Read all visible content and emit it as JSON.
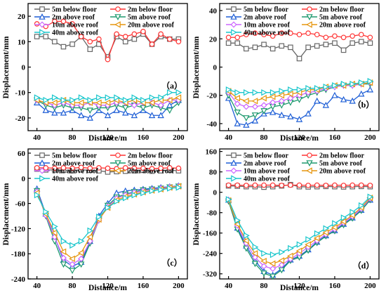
{
  "chart_data": [
    {
      "type": "line",
      "panel_label": "（a）",
      "xlabel": "Distance/m",
      "ylabel": "Displacement/mm",
      "xlim": [
        30,
        210
      ],
      "ylim": [
        -25,
        25
      ],
      "xticks": [
        40,
        80,
        120,
        160,
        200
      ],
      "yticks": [
        -20,
        -10,
        0,
        10,
        20
      ],
      "x": [
        40,
        50,
        60,
        70,
        80,
        90,
        100,
        110,
        120,
        130,
        140,
        150,
        160,
        170,
        180,
        190,
        200
      ],
      "series": [
        {
          "name": "5m below floor",
          "color": "#666666",
          "marker": "square",
          "values": [
            12,
            12,
            10,
            8,
            9,
            12,
            7,
            9,
            4,
            12,
            10,
            11,
            13,
            9,
            12,
            11,
            11
          ]
        },
        {
          "name": "2m below floor",
          "color": "#ff3333",
          "marker": "circle",
          "values": [
            17,
            16,
            18,
            18,
            17,
            12,
            10,
            11,
            3,
            13,
            12,
            13,
            14,
            9,
            13,
            11,
            10
          ]
        },
        {
          "name": "2m above roof",
          "color": "#1f5fd6",
          "marker": "triangle-up",
          "values": [
            -14,
            -17,
            -18,
            -18,
            -17,
            -19,
            -20,
            -17,
            -19,
            -17,
            -18,
            -19,
            -17,
            -19,
            -19,
            -15,
            -13
          ]
        },
        {
          "name": "5m above roof",
          "color": "#1f9a6f",
          "marker": "triangle-down",
          "values": [
            -13,
            -15,
            -16,
            -15,
            -16,
            -16,
            -17,
            -16,
            -16,
            -15,
            -16,
            -15,
            -16,
            -15,
            -16,
            -17,
            -14
          ]
        },
        {
          "name": "10m above roof",
          "color": "#cc66ff",
          "marker": "diamond",
          "values": [
            -13,
            -14,
            -15,
            -14,
            -15,
            -15,
            -14,
            -15,
            -15,
            -14,
            -14,
            -15,
            -14,
            -14,
            -15,
            -13,
            -13
          ]
        },
        {
          "name": "20m above roof",
          "color": "#e6960f",
          "marker": "triangle-left",
          "values": [
            -13,
            -14,
            -14,
            -13,
            -14,
            -14,
            -14,
            -14,
            -14,
            -13,
            -14,
            -13,
            -14,
            -14,
            -13,
            -13,
            -12
          ]
        },
        {
          "name": "40m above roof",
          "color": "#19c6cc",
          "marker": "triangle-right",
          "values": [
            -12,
            -13,
            -12,
            -13,
            -13,
            -12,
            -13,
            -12,
            -12,
            -12,
            -13,
            -12,
            -13,
            -12,
            -12,
            -10,
            -10
          ]
        }
      ]
    },
    {
      "type": "line",
      "panel_label": "（b）",
      "xlabel": "Distance/m",
      "ylabel": "Displacement/mm",
      "xlim": [
        30,
        210
      ],
      "ylim": [
        -45,
        45
      ],
      "xticks": [
        40,
        80,
        120,
        160,
        200
      ],
      "yticks": [
        -40,
        -20,
        0,
        20,
        40
      ],
      "x": [
        40,
        50,
        60,
        70,
        80,
        90,
        100,
        110,
        120,
        130,
        140,
        150,
        160,
        170,
        180,
        190,
        200
      ],
      "series": [
        {
          "name": "5m below floor",
          "color": "#666666",
          "marker": "square",
          "values": [
            17,
            17,
            13,
            14,
            16,
            13,
            15,
            14,
            6,
            14,
            15,
            16,
            17,
            12,
            17,
            18,
            17
          ]
        },
        {
          "name": "2m below floor",
          "color": "#ff3333",
          "marker": "circle",
          "values": [
            21,
            21,
            23,
            24,
            23,
            22,
            24,
            24,
            23,
            24,
            23,
            21,
            22,
            21,
            22,
            23,
            21
          ]
        },
        {
          "name": "2m above roof",
          "color": "#1f5fd6",
          "marker": "triangle-up",
          "values": [
            -22,
            -40,
            -41,
            -38,
            -33,
            -32,
            -34,
            -35,
            -37,
            -33,
            -24,
            -27,
            -20,
            -23,
            -24,
            -19,
            -16
          ]
        },
        {
          "name": "5m above roof",
          "color": "#1f9a6f",
          "marker": "triangle-down",
          "values": [
            -20,
            -32,
            -36,
            -34,
            -31,
            -28,
            -27,
            -25,
            -23,
            -20,
            -18,
            -16,
            -14,
            -13,
            -13,
            -12,
            -12
          ]
        },
        {
          "name": "10m above roof",
          "color": "#cc66ff",
          "marker": "diamond",
          "values": [
            -18,
            -26,
            -28,
            -28,
            -27,
            -25,
            -24,
            -22,
            -20,
            -18,
            -17,
            -15,
            -14,
            -13,
            -13,
            -12,
            -11
          ]
        },
        {
          "name": "20m above roof",
          "color": "#e6960f",
          "marker": "triangle-left",
          "values": [
            -17,
            -22,
            -24,
            -24,
            -22,
            -21,
            -20,
            -19,
            -18,
            -16,
            -16,
            -14,
            -13,
            -13,
            -12,
            -12,
            -11
          ]
        },
        {
          "name": "40m above roof",
          "color": "#19c6cc",
          "marker": "triangle-right",
          "values": [
            -16,
            -18,
            -18,
            -18,
            -18,
            -18,
            -17,
            -16,
            -16,
            -15,
            -15,
            -14,
            -13,
            -12,
            -12,
            -11,
            -10
          ]
        }
      ]
    },
    {
      "type": "line",
      "panel_label": "（c）",
      "xlabel": "Distance/m",
      "ylabel": "Displacement/mm",
      "xlim": [
        30,
        210
      ],
      "ylim": [
        -240,
        70
      ],
      "xticks": [
        40,
        80,
        120,
        160,
        200
      ],
      "yticks": [
        -240,
        -180,
        -120,
        -60,
        0,
        60
      ],
      "x": [
        40,
        50,
        60,
        70,
        80,
        90,
        100,
        110,
        120,
        130,
        140,
        150,
        160,
        170,
        180,
        190,
        200
      ],
      "series": [
        {
          "name": "5m below floor",
          "color": "#666666",
          "marker": "square",
          "values": [
            22,
            20,
            20,
            19,
            18,
            20,
            19,
            18,
            15,
            16,
            17,
            18,
            19,
            17,
            18,
            19,
            18
          ]
        },
        {
          "name": "2m below floor",
          "color": "#ff3333",
          "marker": "circle",
          "values": [
            25,
            25,
            24,
            25,
            24,
            26,
            24,
            25,
            24,
            23,
            25,
            24,
            24,
            23,
            24,
            25,
            24
          ]
        },
        {
          "name": "2m above roof",
          "color": "#1f5fd6",
          "marker": "triangle-up",
          "values": [
            -25,
            -85,
            -140,
            -195,
            -210,
            -200,
            -150,
            -90,
            -60,
            -35,
            -30,
            -28,
            -26,
            -24,
            -22,
            -20,
            -18
          ]
        },
        {
          "name": "5m above roof",
          "color": "#1f9a6f",
          "marker": "triangle-down",
          "values": [
            -30,
            -90,
            -150,
            -205,
            -220,
            -205,
            -155,
            -100,
            -65,
            -45,
            -38,
            -32,
            -28,
            -26,
            -24,
            -21,
            -19
          ]
        },
        {
          "name": "10m above roof",
          "color": "#cc66ff",
          "marker": "diamond",
          "values": [
            -32,
            -88,
            -140,
            -190,
            -205,
            -192,
            -150,
            -100,
            -68,
            -48,
            -40,
            -34,
            -30,
            -27,
            -24,
            -21,
            -19
          ]
        },
        {
          "name": "20m above roof",
          "color": "#e6960f",
          "marker": "triangle-left",
          "values": [
            -35,
            -85,
            -130,
            -175,
            -192,
            -178,
            -140,
            -98,
            -70,
            -52,
            -44,
            -38,
            -33,
            -29,
            -26,
            -22,
            -19
          ]
        },
        {
          "name": "40m above roof",
          "color": "#19c6cc",
          "marker": "triangle-right",
          "values": [
            -40,
            -80,
            -115,
            -150,
            -160,
            -150,
            -125,
            -92,
            -70,
            -55,
            -47,
            -40,
            -35,
            -30,
            -27,
            -24,
            -22
          ]
        }
      ]
    },
    {
      "type": "line",
      "panel_label": "（d）",
      "xlabel": "Distance/m",
      "ylabel": "Displacement/mm",
      "xlim": [
        30,
        210
      ],
      "ylim": [
        -340,
        170
      ],
      "xticks": [
        40,
        80,
        120,
        160,
        200
      ],
      "yticks": [
        -320,
        -240,
        -160,
        -80,
        0,
        80,
        160
      ],
      "x": [
        40,
        50,
        60,
        70,
        80,
        90,
        100,
        110,
        120,
        130,
        140,
        150,
        160,
        170,
        180,
        190,
        200
      ],
      "series": [
        {
          "name": "5m below floor",
          "color": "#666666",
          "marker": "square",
          "values": [
            25,
            24,
            22,
            22,
            20,
            22,
            25,
            30,
            22,
            21,
            22,
            23,
            22,
            21,
            22,
            23,
            22
          ]
        },
        {
          "name": "2m below floor",
          "color": "#ff3333",
          "marker": "circle",
          "values": [
            28,
            28,
            27,
            28,
            28,
            28,
            27,
            28,
            28,
            27,
            28,
            27,
            28,
            27,
            28,
            28,
            27
          ]
        },
        {
          "name": "2m above roof",
          "color": "#1f5fd6",
          "marker": "triangle-up",
          "values": [
            -30,
            -140,
            -210,
            -270,
            -310,
            -325,
            -300,
            -265,
            -250,
            -225,
            -195,
            -170,
            -150,
            -125,
            -100,
            -70,
            -30
          ]
        },
        {
          "name": "5m above roof",
          "color": "#1f9a6f",
          "marker": "triangle-down",
          "values": [
            -35,
            -145,
            -220,
            -280,
            -318,
            -330,
            -305,
            -268,
            -255,
            -228,
            -198,
            -172,
            -152,
            -128,
            -102,
            -72,
            -30
          ]
        },
        {
          "name": "10m above roof",
          "color": "#cc66ff",
          "marker": "diamond",
          "values": [
            -30,
            -130,
            -200,
            -255,
            -290,
            -300,
            -285,
            -262,
            -240,
            -215,
            -190,
            -165,
            -145,
            -120,
            -95,
            -65,
            -25
          ]
        },
        {
          "name": "20m above roof",
          "color": "#e6960f",
          "marker": "triangle-left",
          "values": [
            -32,
            -125,
            -190,
            -240,
            -270,
            -280,
            -268,
            -250,
            -230,
            -205,
            -180,
            -158,
            -138,
            -115,
            -90,
            -60,
            -22
          ]
        },
        {
          "name": "40m above roof",
          "color": "#19c6cc",
          "marker": "triangle-right",
          "values": [
            -28,
            -110,
            -170,
            -215,
            -240,
            -245,
            -235,
            -220,
            -205,
            -185,
            -162,
            -142,
            -122,
            -100,
            -78,
            -52,
            -18
          ]
        }
      ]
    }
  ]
}
